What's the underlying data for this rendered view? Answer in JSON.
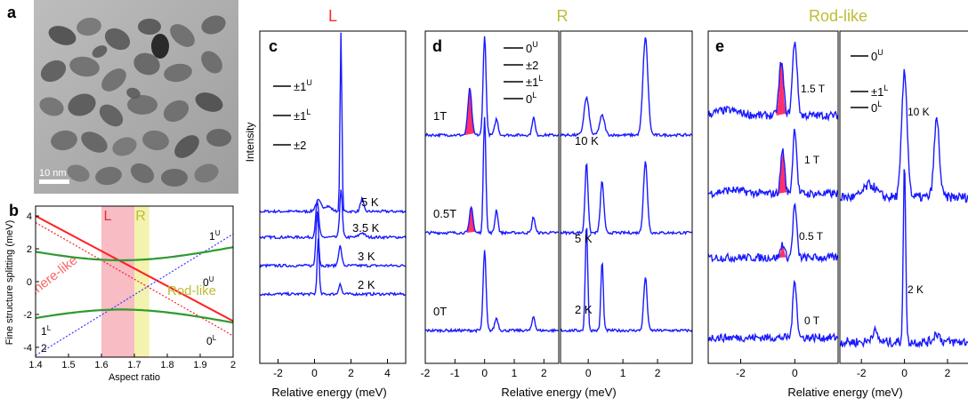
{
  "panels": {
    "a": {
      "letter": "a",
      "scale_bar": "10 nm"
    },
    "b": {
      "letter": "b",
      "ylabel": "Fine structure splitting (meV)",
      "xlabel": "Aspect ratio",
      "xticks": [
        "1.4",
        "1.5",
        "1.6",
        "1.7",
        "1.8",
        "1.9",
        "2"
      ],
      "yticks": [
        "4",
        "2",
        "0",
        "-2",
        "-4"
      ],
      "band_L": "L",
      "band_R": "R",
      "sphere_label": "Sphere-like",
      "rod_label": "Rod-like",
      "level_labels": {
        "one_u": "1",
        "one_u_sup": "U",
        "zero_u": "0",
        "zero_u_sup": "U",
        "one_l": "1",
        "one_l_sup": "L",
        "two": "2",
        "zero_l": "0",
        "zero_l_sup": "L"
      }
    },
    "c": {
      "letter": "c",
      "header": "L",
      "ylabel": "Intensity",
      "xlabel": "Relative energy (meV)",
      "xticks": [
        "-2",
        "0",
        "2",
        "4"
      ],
      "legend": [
        {
          "base": "±1",
          "sup": "U"
        },
        {
          "base": "±1",
          "sup": "L"
        },
        {
          "base": "±2",
          "sup": ""
        }
      ],
      "traces": [
        "5 K",
        "3.5 K",
        "3 K",
        "2 K"
      ]
    },
    "d": {
      "letter": "d",
      "header": "R",
      "xlabel": "Relative energy (meV)",
      "left_xticks": [
        "-2",
        "-1",
        "0",
        "1",
        "2"
      ],
      "right_xticks": [
        "0",
        "1",
        "2"
      ],
      "legend": [
        {
          "base": "0",
          "sup": "U"
        },
        {
          "base": "±2",
          "sup": ""
        },
        {
          "base": "±1",
          "sup": "L"
        },
        {
          "base": "0",
          "sup": "L"
        }
      ],
      "left_traces": [
        "1T",
        "0.5T",
        "0T"
      ],
      "right_traces": [
        "10 K",
        "5 K",
        "2 K"
      ]
    },
    "e": {
      "letter": "e",
      "header": "Rod-like",
      "xlabel": "Relative energy (meV)",
      "left_xticks": [
        "-2",
        "0"
      ],
      "right_xticks": [
        "-2",
        "0",
        "2"
      ],
      "legend": [
        {
          "base": "0",
          "sup": "U"
        },
        {
          "base": "±1",
          "sup": "L"
        },
        {
          "base": "0",
          "sup": "L"
        }
      ],
      "left_traces": [
        "1.5 T",
        "1 T",
        "0.5 T",
        "0 T"
      ],
      "right_traces": [
        "10 K",
        "2 K"
      ]
    }
  },
  "colors": {
    "trace": "#1a1aff",
    "red_line": "#ff2020",
    "green_line": "#2e9a2e",
    "dotted_blue": "#3a3aff",
    "pink_band": "#f4a6b0",
    "yellow_band": "#f1f0a0",
    "L_header": "#ff2a2a",
    "R_header": "#bdbd35",
    "rod_header": "#bdbd35",
    "highlight": "#ff1a5a"
  }
}
